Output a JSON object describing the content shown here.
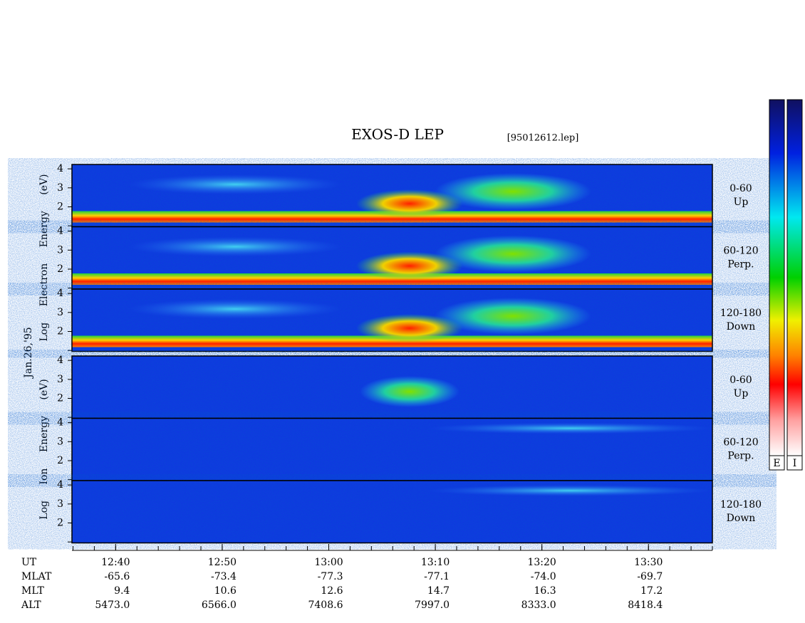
{
  "header": {
    "title": "EXOS-D LEP",
    "file": "[95012612.lep]",
    "date": "Jan.26,'95"
  },
  "axes": {
    "xlim": [
      755.9,
      816.0
    ],
    "xticks": [
      {
        "value": 760,
        "label": "12:40"
      },
      {
        "value": 770,
        "label": "12:50"
      },
      {
        "value": 780,
        "label": "13:00"
      },
      {
        "value": 790,
        "label": "13:10"
      },
      {
        "value": 800,
        "label": "13:20"
      },
      {
        "value": 810,
        "label": "13:30"
      }
    ],
    "xminor_interval": 2,
    "ylim": [
      0.95,
      4.23
    ],
    "yticks": [
      2,
      3,
      4
    ],
    "yminor": [
      1
    ]
  },
  "groups": [
    {
      "ylabel": "Log Electron Energy (eV)",
      "species": "electron",
      "panels": [
        {
          "angle": "0-60",
          "dir": "Up"
        },
        {
          "angle": "60-120",
          "dir": "Perp."
        },
        {
          "angle": "120-180",
          "dir": "Down"
        }
      ]
    },
    {
      "ylabel": "Log Ion Energy (eV)",
      "species": "ion",
      "panels": [
        {
          "angle": "0-60",
          "dir": "Up"
        },
        {
          "angle": "60-120",
          "dir": "Perp."
        },
        {
          "angle": "120-180",
          "dir": "Down"
        }
      ]
    }
  ],
  "ephemeris": {
    "rows": [
      {
        "name": "UT",
        "values": []
      },
      {
        "name": "MLAT",
        "values": [
          "-65.6",
          "-73.4",
          "-77.3",
          "-77.1",
          "-74.0",
          "-69.7"
        ]
      },
      {
        "name": "MLT",
        "values": [
          "9.4",
          "10.6",
          "12.6",
          "14.7",
          "16.3",
          "17.2"
        ]
      },
      {
        "name": "ALT",
        "values": [
          "5473.0",
          "6566.0",
          "7408.6",
          "7997.0",
          "8333.0",
          "8418.4"
        ]
      }
    ]
  },
  "colorbars": [
    {
      "label": "E"
    },
    {
      "label": "I"
    }
  ]
}
